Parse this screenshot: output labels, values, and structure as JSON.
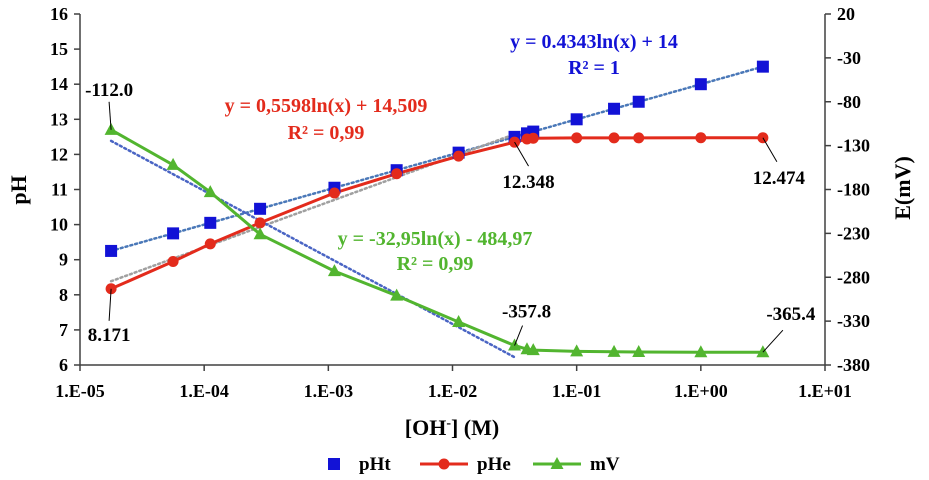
{
  "chart_data": {
    "type": "scatter",
    "xscale": "log",
    "xlim": [
      1e-05,
      10
    ],
    "ylim": [
      6,
      16
    ],
    "y2lim": [
      -380,
      20
    ],
    "xlabel": "[OH-] (M)",
    "xlabel_main": "[OH",
    "xlabel_sup": "-",
    "xlabel_tail": "] (M)",
    "ylabel": "pH",
    "y2label": "E(mV)",
    "x_tick_labels": [
      "1.E-05",
      "1.E-04",
      "1.E-03",
      "1.E-02",
      "1.E-01",
      "1.E+00",
      "1.E+01"
    ],
    "y_tick_labels": [
      "6",
      "7",
      "8",
      "9",
      "10",
      "11",
      "12",
      "13",
      "14",
      "15",
      "16"
    ],
    "y2_tick_labels": [
      "-380",
      "-330",
      "-280",
      "-230",
      "-180",
      "-130",
      "-80",
      "-30",
      "20"
    ],
    "series": [
      {
        "name": "pHt",
        "axis": "left",
        "marker": "square",
        "color": "#1212d6",
        "x": [
          1.78e-05,
          5.62e-05,
          0.000112,
          0.000282,
          0.00112,
          0.00355,
          0.0112,
          0.0316,
          0.0398,
          0.0447,
          0.1,
          0.2,
          0.316,
          1.0,
          3.16
        ],
        "y": [
          9.25,
          9.75,
          10.05,
          10.45,
          11.05,
          11.55,
          12.05,
          12.5,
          12.6,
          12.65,
          13.0,
          13.3,
          13.5,
          14.0,
          14.5
        ]
      },
      {
        "name": "pHe",
        "axis": "left",
        "marker": "circle",
        "line": true,
        "color": "#e32b1c",
        "x": [
          1.78e-05,
          5.62e-05,
          0.000112,
          0.000282,
          0.00112,
          0.00355,
          0.0112,
          0.0316,
          0.0398,
          0.0447,
          0.1,
          0.2,
          0.316,
          1.0,
          3.16
        ],
        "y": [
          8.171,
          8.95,
          9.45,
          10.05,
          10.9,
          11.45,
          11.95,
          12.348,
          12.44,
          12.46,
          12.47,
          12.47,
          12.47,
          12.474,
          12.474
        ]
      },
      {
        "name": "mV",
        "axis": "right",
        "marker": "triangle",
        "line": true,
        "color": "#52b52f",
        "x": [
          1.78e-05,
          5.62e-05,
          0.000112,
          0.000282,
          0.00112,
          0.00355,
          0.0112,
          0.0316,
          0.0398,
          0.0447,
          0.1,
          0.2,
          0.316,
          1.0,
          3.16
        ],
        "y": [
          -112.0,
          -152,
          -183,
          -231,
          -273,
          -301,
          -331,
          -357.8,
          -362,
          -363,
          -364.5,
          -365,
          -365.2,
          -365.4,
          -365.4
        ]
      }
    ],
    "trendlines": [
      {
        "series": "pHt",
        "type": "log",
        "a": 0.4343,
        "b": 14,
        "axis": "left",
        "color": "#4a78b8",
        "x_range": [
          1.78e-05,
          3.16
        ]
      },
      {
        "series": "pHe",
        "type": "log",
        "a": 0.5598,
        "b": 14.509,
        "axis": "left",
        "color": "#a0a0a0",
        "x_range": [
          1.78e-05,
          0.0316
        ]
      },
      {
        "series": "mV",
        "type": "log",
        "a": -32.95,
        "b": -484.97,
        "axis": "right",
        "color": "#4a65c4",
        "x_range": [
          1.78e-05,
          0.0316
        ]
      }
    ],
    "equations": {
      "pHt": {
        "eq": "y = 0.4343ln(x) + 14",
        "r2": "R² = 1",
        "color": "#1212d6"
      },
      "pHe": {
        "eq": "y = 0,5598ln(x) + 14,509",
        "r2": "R² = 0,99",
        "color": "#e32b1c"
      },
      "mV": {
        "eq": "y = -32,95ln(x) - 484,97",
        "r2": "R² = 0,99",
        "color": "#52b52f"
      }
    },
    "annotations": [
      {
        "text": "-112.0",
        "x": 1.78e-05,
        "y": -112.0,
        "axis": "right"
      },
      {
        "text": "8.171",
        "x": 1.78e-05,
        "y": 8.171,
        "axis": "left"
      },
      {
        "text": "12.348",
        "x": 0.0316,
        "y": 12.348,
        "axis": "left"
      },
      {
        "text": "12.474",
        "x": 3.16,
        "y": 12.474,
        "axis": "left"
      },
      {
        "text": "-357.8",
        "x": 0.0316,
        "y": -357.8,
        "axis": "right"
      },
      {
        "text": "-365.4",
        "x": 3.16,
        "y": -365.4,
        "axis": "right"
      }
    ],
    "legend": {
      "position": "bottom",
      "items": [
        "pHt",
        "pHe",
        "mV"
      ]
    }
  }
}
